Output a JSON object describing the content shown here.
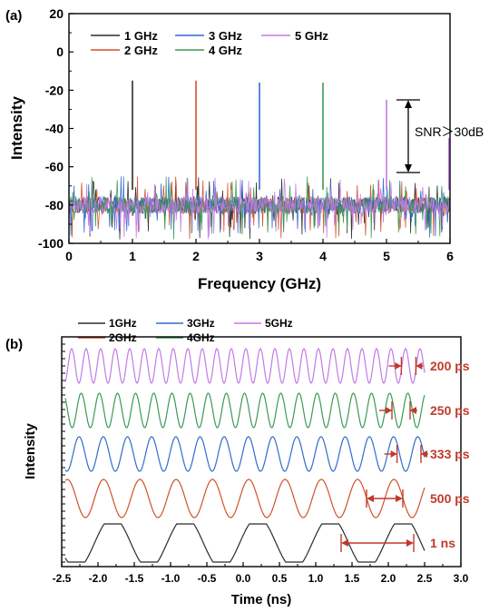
{
  "chart_data": [
    {
      "panel_label": "(a)",
      "type": "line",
      "xlabel": "Frequency (GHz)",
      "ylabel": "Intensity",
      "xlim": [
        0,
        6
      ],
      "ylim": [
        -100,
        20
      ],
      "xticks": [
        "0",
        "1",
        "2",
        "3",
        "4",
        "5",
        "6"
      ],
      "yticks": [
        "20",
        "0",
        "-20",
        "-40",
        "-60",
        "-80",
        "-100"
      ],
      "noise_floor": {
        "low": -95,
        "high": -65
      },
      "series": [
        {
          "name": "1 GHz",
          "color": "#2b2b2b",
          "peak_x": 1,
          "peak_y": -15
        },
        {
          "name": "2 GHz",
          "color": "#d0512a",
          "peak_x": 2,
          "peak_y": -15
        },
        {
          "name": "3 GHz",
          "color": "#2f6ccf",
          "peak_x": 3,
          "peak_y": -16
        },
        {
          "name": "4 GHz",
          "color": "#3a9a55",
          "peak_x": 4,
          "peak_y": -16
        },
        {
          "name": "5 GHz",
          "color": "#c27ae6",
          "peak_x": 5,
          "peak_y": -25
        }
      ],
      "legend_position": "top-left",
      "annotation": {
        "text": "SNR＞30dB",
        "from_y": -25,
        "to_y": -63
      }
    },
    {
      "panel_label": "(b)",
      "type": "line",
      "xlabel": "Time (ns)",
      "ylabel": "Intensity",
      "xlim": [
        -2.5,
        3.0
      ],
      "xticks": [
        "-2.5",
        "-2.0",
        "-1.5",
        "-1.0",
        "-0.5",
        "0.0",
        "0.5",
        "1.0",
        "1.5",
        "2.0",
        "2.5",
        "3.0"
      ],
      "series": [
        {
          "name": "1GHz",
          "color": "#2b2b2b",
          "frequency_ghz": 1,
          "period_label": "1 ns"
        },
        {
          "name": "2GHz",
          "color": "#d0512a",
          "frequency_ghz": 2,
          "period_label": "500 ps"
        },
        {
          "name": "3GHz",
          "color": "#2f6ccf",
          "frequency_ghz": 3,
          "period_label": "333 ps"
        },
        {
          "name": "4GHz",
          "color": "#3a9a55",
          "frequency_ghz": 4,
          "period_label": "250 ps"
        },
        {
          "name": "5GHz",
          "color": "#c27ae6",
          "frequency_ghz": 5,
          "period_label": "200 ps"
        }
      ],
      "annotation_color": "#c0392b",
      "legend_position": "top-left"
    }
  ]
}
